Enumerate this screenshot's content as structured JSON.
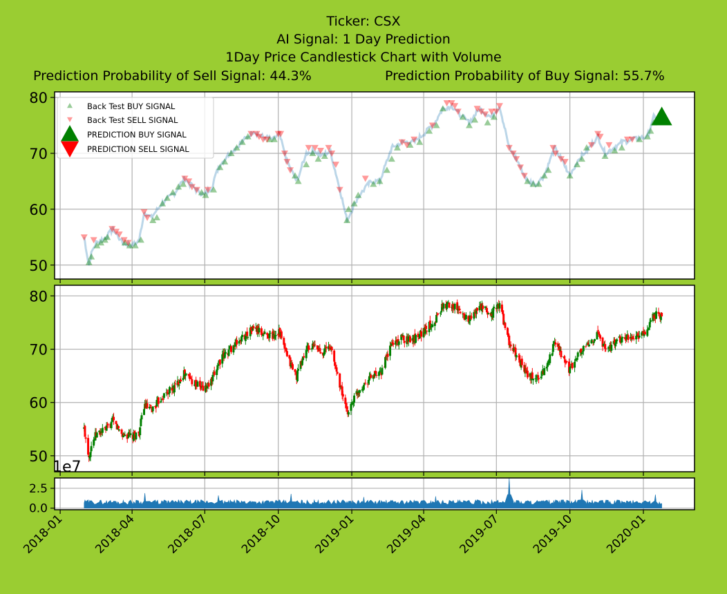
{
  "titles": {
    "line1": "Ticker: CSX",
    "line2": "AI Signal: 1 Day Prediction",
    "line3": "1Day Price Candlestick Chart with Volume",
    "sell_prob": "Prediction Probability of Sell Signal: 44.3%",
    "buy_prob": "Prediction Probability of Buy Signal: 55.7%"
  },
  "colors": {
    "background": "#9acd32",
    "plot_bg": "#ffffff",
    "grid": "#b0b0b0",
    "buy": "#008000",
    "sell": "#ff0000",
    "price_line": "#1f77b4",
    "volume": "#1f77b4"
  },
  "chart_data": [
    {
      "type": "scatter",
      "name": "signal-panel",
      "ylim": [
        47.5,
        81
      ],
      "yticks": [
        "50",
        "60",
        "70",
        "80"
      ],
      "grid": true,
      "legend_placement": "top-left",
      "legend": [
        {
          "label": "Back Test BUY SIGNAL",
          "marker": "triangle-up-small",
          "color": "#008000"
        },
        {
          "label": "Back Test SELL SIGNAL",
          "marker": "triangle-down-small",
          "color": "#ff0000"
        },
        {
          "label": "PREDICTION BUY SIGNAL",
          "marker": "triangle-up-large",
          "color": "#008000"
        },
        {
          "label": "PREDICTION SELL SIGNAL",
          "marker": "triangle-down-large",
          "color": "#ff0000"
        }
      ],
      "price_keypoints": [
        [
          "2018-01-31",
          55
        ],
        [
          "2018-02-06",
          50
        ],
        [
          "2018-02-09",
          52
        ],
        [
          "2018-02-15",
          54
        ],
        [
          "2018-02-28",
          55
        ],
        [
          "2018-03-08",
          56.5
        ],
        [
          "2018-03-20",
          54
        ],
        [
          "2018-04-02",
          53.5
        ],
        [
          "2018-04-10",
          54.5
        ],
        [
          "2018-04-16",
          59.5
        ],
        [
          "2018-04-25",
          58.5
        ],
        [
          "2018-05-08",
          61
        ],
        [
          "2018-05-25",
          63
        ],
        [
          "2018-06-05",
          65.5
        ],
        [
          "2018-06-20",
          63.5
        ],
        [
          "2018-06-30",
          62.5
        ],
        [
          "2018-07-10",
          64
        ],
        [
          "2018-07-18",
          67.5
        ],
        [
          "2018-08-01",
          70
        ],
        [
          "2018-08-20",
          72.5
        ],
        [
          "2018-08-31",
          74
        ],
        [
          "2018-09-10",
          73
        ],
        [
          "2018-09-25",
          72.5
        ],
        [
          "2018-10-02",
          73.5
        ],
        [
          "2018-10-12",
          68.5
        ],
        [
          "2018-10-24",
          65
        ],
        [
          "2018-11-05",
          70
        ],
        [
          "2018-11-15",
          70.5
        ],
        [
          "2018-11-25",
          69.5
        ],
        [
          "2018-12-05",
          70.5
        ],
        [
          "2018-12-18",
          63
        ],
        [
          "2018-12-26",
          58
        ],
        [
          "2019-01-08",
          62
        ],
        [
          "2019-01-25",
          65
        ],
        [
          "2019-02-05",
          65
        ],
        [
          "2019-02-20",
          71
        ],
        [
          "2019-03-05",
          72
        ],
        [
          "2019-03-20",
          72
        ],
        [
          "2019-04-05",
          74
        ],
        [
          "2019-04-15",
          75.5
        ],
        [
          "2019-04-25",
          78
        ],
        [
          "2019-05-06",
          78.5
        ],
        [
          "2019-05-16",
          77
        ],
        [
          "2019-05-28",
          75.5
        ],
        [
          "2019-06-10",
          78
        ],
        [
          "2019-06-24",
          76.5
        ],
        [
          "2019-07-05",
          78.5
        ],
        [
          "2019-07-17",
          71
        ],
        [
          "2019-07-26",
          69
        ],
        [
          "2019-08-09",
          65
        ],
        [
          "2019-08-20",
          64.5
        ],
        [
          "2019-08-30",
          66
        ],
        [
          "2019-09-12",
          71
        ],
        [
          "2019-09-20",
          69
        ],
        [
          "2019-10-01",
          66
        ],
        [
          "2019-10-12",
          69
        ],
        [
          "2019-10-25",
          71
        ],
        [
          "2019-11-05",
          73
        ],
        [
          "2019-11-14",
          70
        ],
        [
          "2019-11-25",
          71
        ],
        [
          "2019-12-06",
          72
        ],
        [
          "2019-12-20",
          72.5
        ],
        [
          "2020-01-06",
          73
        ],
        [
          "2020-01-14",
          76.5
        ],
        [
          "2020-01-24",
          76
        ]
      ],
      "backtest_buy_signals": [
        [
          "2018-02-06",
          50.5
        ],
        [
          "2018-02-09",
          51.5
        ],
        [
          "2018-02-16",
          53.5
        ],
        [
          "2018-02-21",
          54
        ],
        [
          "2018-02-26",
          54.5
        ],
        [
          "2018-03-01",
          55
        ],
        [
          "2018-03-23",
          54
        ],
        [
          "2018-03-29",
          53.5
        ],
        [
          "2018-04-05",
          53.5
        ],
        [
          "2018-04-12",
          54.5
        ],
        [
          "2018-04-27",
          58
        ],
        [
          "2018-05-02",
          58.5
        ],
        [
          "2018-05-09",
          61
        ],
        [
          "2018-05-15",
          62
        ],
        [
          "2018-05-22",
          63
        ],
        [
          "2018-05-29",
          64
        ],
        [
          "2018-06-04",
          64.5
        ],
        [
          "2018-06-27",
          63
        ],
        [
          "2018-07-02",
          62.5
        ],
        [
          "2018-07-12",
          63.5
        ],
        [
          "2018-07-20",
          67.5
        ],
        [
          "2018-07-26",
          68.5
        ],
        [
          "2018-08-03",
          70
        ],
        [
          "2018-08-10",
          71
        ],
        [
          "2018-08-17",
          72
        ],
        [
          "2018-08-24",
          73
        ],
        [
          "2018-09-20",
          72.5
        ],
        [
          "2018-09-26",
          72.5
        ],
        [
          "2018-10-22",
          66
        ],
        [
          "2018-10-26",
          65
        ],
        [
          "2018-11-05",
          68
        ],
        [
          "2018-11-13",
          70
        ],
        [
          "2018-11-20",
          69
        ],
        [
          "2018-11-28",
          69.5
        ],
        [
          "2018-12-26",
          58
        ],
        [
          "2018-12-28",
          60
        ],
        [
          "2019-01-04",
          61
        ],
        [
          "2019-01-09",
          62.5
        ],
        [
          "2019-01-28",
          64.5
        ],
        [
          "2019-02-05",
          65
        ],
        [
          "2019-02-14",
          67
        ],
        [
          "2019-02-20",
          69
        ],
        [
          "2019-02-27",
          71
        ],
        [
          "2019-03-15",
          71.5
        ],
        [
          "2019-03-27",
          72
        ],
        [
          "2019-04-08",
          74
        ],
        [
          "2019-04-17",
          75
        ],
        [
          "2019-04-25",
          78
        ],
        [
          "2019-05-20",
          76.5
        ],
        [
          "2019-05-28",
          75
        ],
        [
          "2019-06-04",
          76
        ],
        [
          "2019-06-20",
          75.5
        ],
        [
          "2019-06-28",
          76.5
        ],
        [
          "2019-08-09",
          65
        ],
        [
          "2019-08-16",
          64.5
        ],
        [
          "2019-08-23",
          64.5
        ],
        [
          "2019-08-30",
          66
        ],
        [
          "2019-09-04",
          67
        ],
        [
          "2019-10-01",
          66
        ],
        [
          "2019-10-10",
          68
        ],
        [
          "2019-10-16",
          69
        ],
        [
          "2019-10-22",
          71
        ],
        [
          "2019-11-14",
          69.5
        ],
        [
          "2019-11-26",
          70.5
        ],
        [
          "2019-12-05",
          71
        ],
        [
          "2019-12-27",
          72.5
        ],
        [
          "2020-01-06",
          73
        ],
        [
          "2020-01-10",
          74
        ],
        [
          "2020-01-14",
          75.5
        ]
      ],
      "backtest_sell_signals": [
        [
          "2018-01-31",
          55
        ],
        [
          "2018-02-12",
          54.5
        ],
        [
          "2018-03-07",
          56.5
        ],
        [
          "2018-03-12",
          56
        ],
        [
          "2018-03-16",
          55.5
        ],
        [
          "2018-03-22",
          54.5
        ],
        [
          "2018-03-27",
          54
        ],
        [
          "2018-04-16",
          59.5
        ],
        [
          "2018-04-20",
          58.5
        ],
        [
          "2018-06-06",
          65.5
        ],
        [
          "2018-06-11",
          65
        ],
        [
          "2018-06-15",
          64
        ],
        [
          "2018-06-21",
          63.5
        ],
        [
          "2018-07-05",
          63.5
        ],
        [
          "2018-08-28",
          73.5
        ],
        [
          "2018-09-04",
          73.5
        ],
        [
          "2018-09-07",
          73
        ],
        [
          "2018-09-12",
          72.5
        ],
        [
          "2018-09-17",
          72.5
        ],
        [
          "2018-10-01",
          73.5
        ],
        [
          "2018-10-04",
          73.5
        ],
        [
          "2018-10-09",
          70
        ],
        [
          "2018-10-12",
          68.5
        ],
        [
          "2018-10-16",
          67
        ],
        [
          "2018-11-08",
          71
        ],
        [
          "2018-11-16",
          71
        ],
        [
          "2018-11-23",
          70.5
        ],
        [
          "2018-12-03",
          71
        ],
        [
          "2018-12-07",
          70
        ],
        [
          "2018-12-12",
          68
        ],
        [
          "2018-12-17",
          63.5
        ],
        [
          "2019-01-18",
          65.5
        ],
        [
          "2019-03-05",
          72
        ],
        [
          "2019-03-11",
          71.5
        ],
        [
          "2019-03-20",
          72.5
        ],
        [
          "2019-04-12",
          75
        ],
        [
          "2019-04-30",
          79
        ],
        [
          "2019-05-06",
          79
        ],
        [
          "2019-05-10",
          78.5
        ],
        [
          "2019-05-14",
          77.5
        ],
        [
          "2019-06-07",
          78
        ],
        [
          "2019-06-12",
          77.5
        ],
        [
          "2019-06-17",
          77
        ],
        [
          "2019-06-25",
          77.5
        ],
        [
          "2019-07-01",
          77.5
        ],
        [
          "2019-07-05",
          78.5
        ],
        [
          "2019-07-17",
          71
        ],
        [
          "2019-07-22",
          70
        ],
        [
          "2019-07-26",
          69
        ],
        [
          "2019-07-31",
          67.5
        ],
        [
          "2019-08-05",
          66
        ],
        [
          "2019-09-10",
          71
        ],
        [
          "2019-09-13",
          70
        ],
        [
          "2019-09-20",
          69
        ],
        [
          "2019-09-25",
          68.5
        ],
        [
          "2019-10-28",
          71.5
        ],
        [
          "2019-11-05",
          73.5
        ],
        [
          "2019-11-08",
          73
        ],
        [
          "2019-11-19",
          71.5
        ],
        [
          "2019-12-12",
          72.5
        ],
        [
          "2019-12-18",
          72.5
        ]
      ],
      "prediction_buy_signal": [
        "2020-01-24",
        76.5
      ]
    },
    {
      "type": "candlestick",
      "name": "price-panel",
      "ylim": [
        47,
        82
      ],
      "yticks": [
        "50",
        "60",
        "70",
        "80"
      ],
      "grid": true,
      "up_color": "#008000",
      "down_color": "#ff0000"
    },
    {
      "type": "area",
      "name": "volume-panel",
      "ylim": [
        -0.2,
        3.8
      ],
      "yticks": [
        "0.0",
        "2.5"
      ],
      "offset_label": "1e7",
      "grid": true,
      "x_range": [
        "2018-01-01",
        "2020-01-01"
      ],
      "xticks": [
        "2018-01",
        "2018-04",
        "2018-07",
        "2018-10",
        "2019-01",
        "2019-04",
        "2019-07",
        "2019-10",
        "2020-01"
      ],
      "volume_spikes": [
        [
          "2018-04-17",
          1.9
        ],
        [
          "2018-07-18",
          1.6
        ],
        [
          "2018-10-17",
          1.8
        ],
        [
          "2019-01-16",
          1.4
        ],
        [
          "2019-04-16",
          1.5
        ],
        [
          "2019-07-17",
          3.8
        ],
        [
          "2019-10-16",
          2.3
        ],
        [
          "2020-01-16",
          1.7
        ]
      ]
    }
  ]
}
